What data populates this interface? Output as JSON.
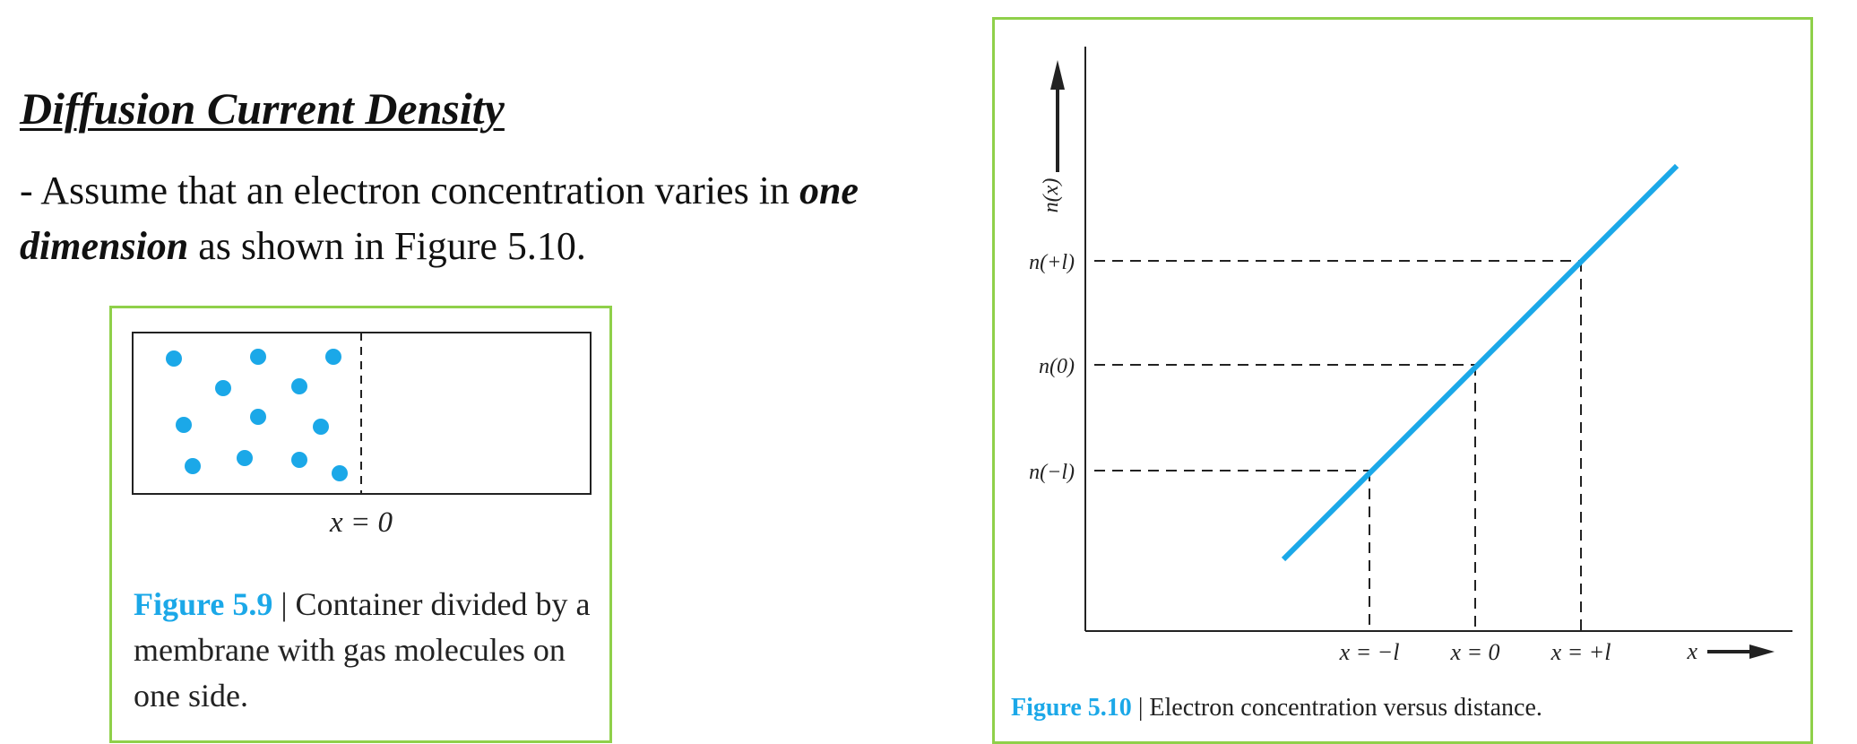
{
  "heading": "Diffusion Current Density",
  "paragraph": {
    "prefix": "- Assume that an electron concentration varies in ",
    "emphasis": "one dimension",
    "suffix": " as shown in Figure 5.10."
  },
  "figure_5_9": {
    "label": "x = 0",
    "caption_number": "Figure 5.9",
    "caption_text": " | Container divided by a membrane with gas molecules on one side.",
    "molecule_count": 12
  },
  "figure_5_10": {
    "caption_number": "Figure 5.10",
    "caption_text": " | Electron concentration versus distance.",
    "y_axis_label": "n(x)",
    "x_axis_label": "x",
    "y_labels": [
      "n(+l)",
      "n(0)",
      "n(−l)"
    ],
    "x_labels": [
      "x = −l",
      "x = 0",
      "x = +l"
    ]
  },
  "colors": {
    "accent": "#1ba8e8",
    "frame": "#8fd04a"
  }
}
